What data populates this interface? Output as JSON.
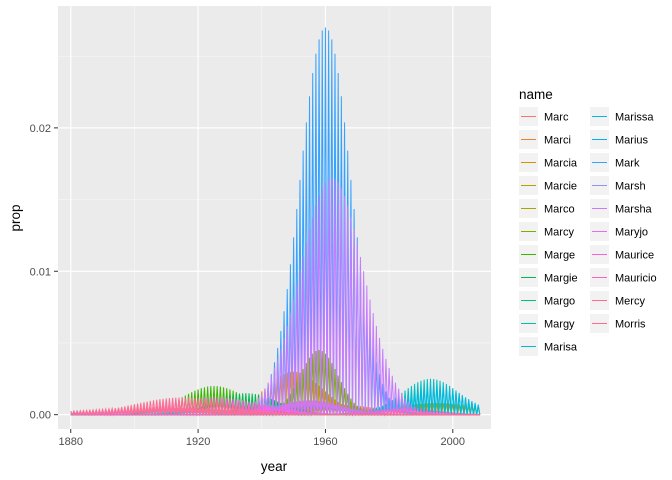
{
  "chart_data": {
    "type": "line",
    "xlabel": "year",
    "ylabel": "prop",
    "xlim": [
      1876,
      2012
    ],
    "ylim": [
      -0.001,
      0.0285
    ],
    "x_ticks": [
      1880,
      1920,
      1960,
      2000
    ],
    "y_ticks": [
      0.0,
      0.01,
      0.02
    ],
    "y_tick_labels": [
      "0.00",
      "0.01",
      "0.02"
    ],
    "grid": true,
    "background": "#ebebeb",
    "legend": {
      "title": "name",
      "placement": "right",
      "columns": 2
    },
    "series": [
      {
        "name": "Marc",
        "color": "#F8766D",
        "peak_year": 1963,
        "peak": 0.0007,
        "width": 14
      },
      {
        "name": "Marci",
        "color": "#EA8331",
        "peak_year": 1963,
        "peak": 0.0006,
        "width": 8
      },
      {
        "name": "Marcia",
        "color": "#D89000",
        "peak_year": 1950,
        "peak": 0.003,
        "width": 9
      },
      {
        "name": "Marcie",
        "color": "#C09B00",
        "peak_year": 1962,
        "peak": 0.0006,
        "width": 8
      },
      {
        "name": "Marco",
        "color": "#A3A500",
        "peak_year": 1995,
        "peak": 0.0008,
        "width": 14
      },
      {
        "name": "Marcy",
        "color": "#7CAE00",
        "peak_year": 1958,
        "peak": 0.0045,
        "width": 6
      },
      {
        "name": "Marge",
        "color": "#39B600",
        "peak_year": 1925,
        "peak": 0.002,
        "width": 10
      },
      {
        "name": "Margie",
        "color": "#00BB4E",
        "peak_year": 1935,
        "peak": 0.0015,
        "width": 10
      },
      {
        "name": "Margo",
        "color": "#00BF7D",
        "peak_year": 1955,
        "peak": 0.0008,
        "width": 10
      },
      {
        "name": "Margy",
        "color": "#00C1A3",
        "peak_year": 1925,
        "peak": 0.0003,
        "width": 10
      },
      {
        "name": "Marisa",
        "color": "#00BFC4",
        "peak_year": 1993,
        "peak": 0.0025,
        "width": 9
      },
      {
        "name": "Marissa",
        "color": "#00BAE0",
        "peak_year": 1995,
        "peak": 0.002,
        "width": 9
      },
      {
        "name": "Marius",
        "color": "#00B0F6",
        "peak_year": 1900,
        "peak": 0.0003,
        "width": 30
      },
      {
        "name": "Mark",
        "color": "#35A2FF",
        "peak_year": 1960,
        "peak": 0.027,
        "width": 8
      },
      {
        "name": "Marsh",
        "color": "#9590FF",
        "peak_year": 1910,
        "peak": 0.0003,
        "width": 20
      },
      {
        "name": "Marsha",
        "color": "#C77CFF",
        "peak_year": 1962,
        "peak": 0.0165,
        "width": 10
      },
      {
        "name": "Maryjo",
        "color": "#E76BF3",
        "peak_year": 1955,
        "peak": 0.001,
        "width": 10
      },
      {
        "name": "Maurice",
        "color": "#FA62DB",
        "peak_year": 1925,
        "peak": 0.0012,
        "width": 15
      },
      {
        "name": "Mauricio",
        "color": "#FF62BC",
        "peak_year": 1985,
        "peak": 0.0004,
        "width": 10
      },
      {
        "name": "Mercy",
        "color": "#FF6C91",
        "peak_year": 1905,
        "peak": 0.0005,
        "width": 20
      },
      {
        "name": "Morris",
        "color": "#FF6C91",
        "peak_year": 1915,
        "peak": 0.0012,
        "width": 15
      }
    ]
  }
}
